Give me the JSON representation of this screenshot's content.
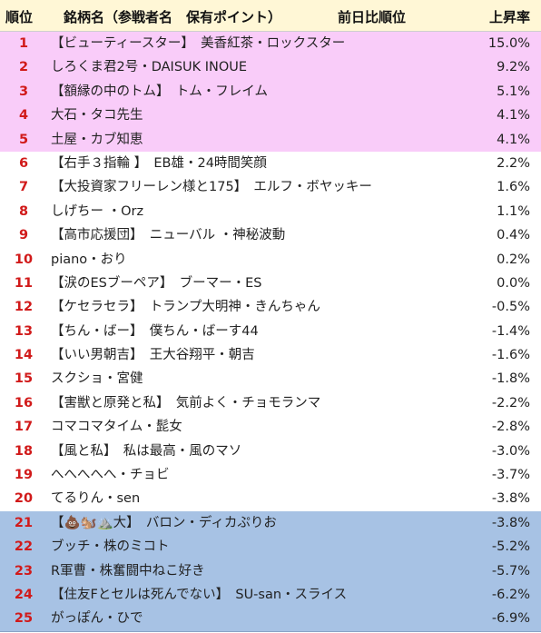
{
  "header": {
    "rank": "順位",
    "name": "銘柄名（参戦者名　保有ポイント）",
    "prev": "前日比順位",
    "rate": "上昇率"
  },
  "colors": {
    "header_bg": "#fff7d6",
    "top_group_bg": "#f9ccf9",
    "bottom_group_bg": "#a7c2e4",
    "rank_text": "#d11a1a"
  },
  "rows": [
    {
      "rank": "1",
      "name": "【ビューティースター】　美香紅茶・ロックスター",
      "rate": "15.0%",
      "group": "top"
    },
    {
      "rank": "2",
      "name": "しろくま君2号・DAISUK INOUE",
      "rate": "9.2%",
      "group": "top"
    },
    {
      "rank": "3",
      "name": "【額縁の中のトム】　トム・フレイム",
      "rate": "5.1%",
      "group": "top"
    },
    {
      "rank": "4",
      "name": "大石・タコ先生",
      "rate": "4.1%",
      "group": "top"
    },
    {
      "rank": "5",
      "name": "土屋・カブ知恵",
      "rate": "4.1%",
      "group": "top"
    },
    {
      "rank": "6",
      "name": "【右手３指輪 】　EB雄・24時間笑顔",
      "rate": "2.2%",
      "group": "mid"
    },
    {
      "rank": "7",
      "name": "【大投資家フリーレン様と175】　エルフ・ボヤッキー",
      "rate": "1.6%",
      "group": "mid"
    },
    {
      "rank": "8",
      "name": "しげちー ・Orz",
      "rate": "1.1%",
      "group": "mid"
    },
    {
      "rank": "9",
      "name": "【高市応援団】　ニューバル ・神秘波動",
      "rate": "0.4%",
      "group": "mid"
    },
    {
      "rank": "10",
      "name": "piano・おり",
      "rate": "0.2%",
      "group": "mid"
    },
    {
      "rank": "11",
      "name": "【涙のESブーペア】　ブーマー・ES",
      "rate": "0.0%",
      "group": "mid"
    },
    {
      "rank": "12",
      "name": "【ケセラセラ】　トランプ大明神・きんちゃん",
      "rate": "-0.5%",
      "group": "mid"
    },
    {
      "rank": "13",
      "name": "【ちん・ばー】　僕ちん・ばーす44",
      "rate": "-1.4%",
      "group": "mid"
    },
    {
      "rank": "14",
      "name": "【いい男朝吉】　王大谷翔平・朝吉",
      "rate": "-1.6%",
      "group": "mid"
    },
    {
      "rank": "15",
      "name": "スクショ・宮健",
      "rate": "-1.8%",
      "group": "mid"
    },
    {
      "rank": "16",
      "name": "【害獣と原発と私】　気前よく・チョモランマ",
      "rate": "-2.2%",
      "group": "mid"
    },
    {
      "rank": "17",
      "name": "コマコマタイム・髭女",
      "rate": "-2.8%",
      "group": "mid"
    },
    {
      "rank": "18",
      "name": "【風と私】　私は最高・風のマソ",
      "rate": "-3.0%",
      "group": "mid"
    },
    {
      "rank": "19",
      "name": "へへへへへ・チョビ",
      "rate": "-3.7%",
      "group": "mid"
    },
    {
      "rank": "20",
      "name": "てるりん・sen",
      "rate": "-3.8%",
      "group": "mid"
    },
    {
      "rank": "21",
      "name": "【💩🐿️⛰️大】　バロン・ディカぷりお",
      "rate": "-3.8%",
      "group": "bottom"
    },
    {
      "rank": "22",
      "name": "ブッチ・株のミコト",
      "rate": "-5.2%",
      "group": "bottom"
    },
    {
      "rank": "23",
      "name": "R軍曹・株奮闘中ねこ好き",
      "rate": "-5.7%",
      "group": "bottom"
    },
    {
      "rank": "24",
      "name": "【住友Fとセルは死んでない】　SU-san・スライス",
      "rate": "-6.2%",
      "group": "bottom"
    },
    {
      "rank": "25",
      "name": "がっぽん・ひで",
      "rate": "-6.9%",
      "group": "bottom"
    }
  ]
}
